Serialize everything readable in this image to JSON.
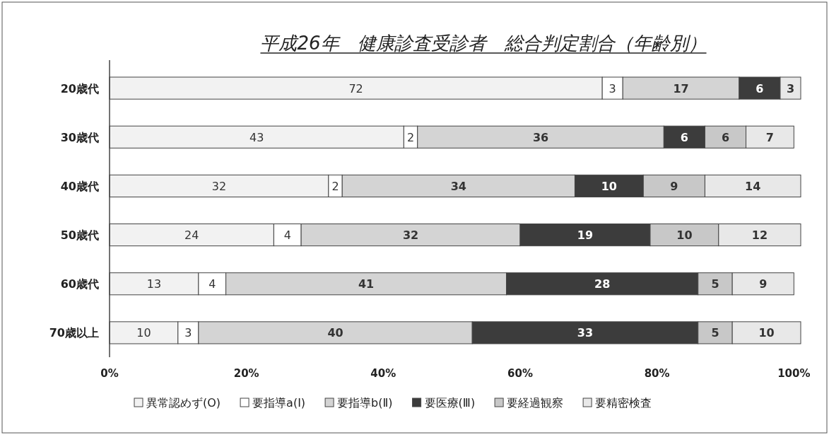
{
  "chart_data": {
    "type": "bar",
    "orientation": "horizontal",
    "stacked": true,
    "title": "平成26年　健康診査受診者　総合判定割合（年齢別）",
    "categories": [
      "20歳代",
      "30歳代",
      "40歳代",
      "50歳代",
      "60歳代",
      "70歳以上"
    ],
    "series": [
      {
        "name": "異常認めず(O)",
        "color": "#f2f2f2",
        "values": [
          72,
          43,
          32,
          24,
          13,
          10
        ]
      },
      {
        "name": "要指導a(Ⅰ)",
        "color": "#ffffff",
        "values": [
          3,
          2,
          2,
          4,
          4,
          3
        ]
      },
      {
        "name": "要指導b(Ⅱ)",
        "color": "#d4d4d4",
        "values": [
          17,
          36,
          34,
          32,
          41,
          40
        ]
      },
      {
        "name": "要医療(Ⅲ)",
        "color": "#3c3c3c",
        "values": [
          6,
          6,
          10,
          19,
          28,
          33
        ]
      },
      {
        "name": "要経過観察",
        "color": "#c8c8c8",
        "values": [
          null,
          6,
          9,
          10,
          5,
          5
        ]
      },
      {
        "name": "要精密検査",
        "color": "#e8e8e8",
        "values": [
          3,
          7,
          14,
          12,
          9,
          10
        ]
      }
    ],
    "xlim": [
      0,
      101
    ],
    "xticks": [
      {
        "value": 0,
        "label": "0%"
      },
      {
        "value": 20,
        "label": "20%"
      },
      {
        "value": 40,
        "label": "40%"
      },
      {
        "value": 60,
        "label": "60%"
      },
      {
        "value": 80,
        "label": "80%"
      },
      {
        "value": 100,
        "label": "100%"
      }
    ],
    "data_labels": true,
    "legend": "bottom",
    "grid": false
  }
}
